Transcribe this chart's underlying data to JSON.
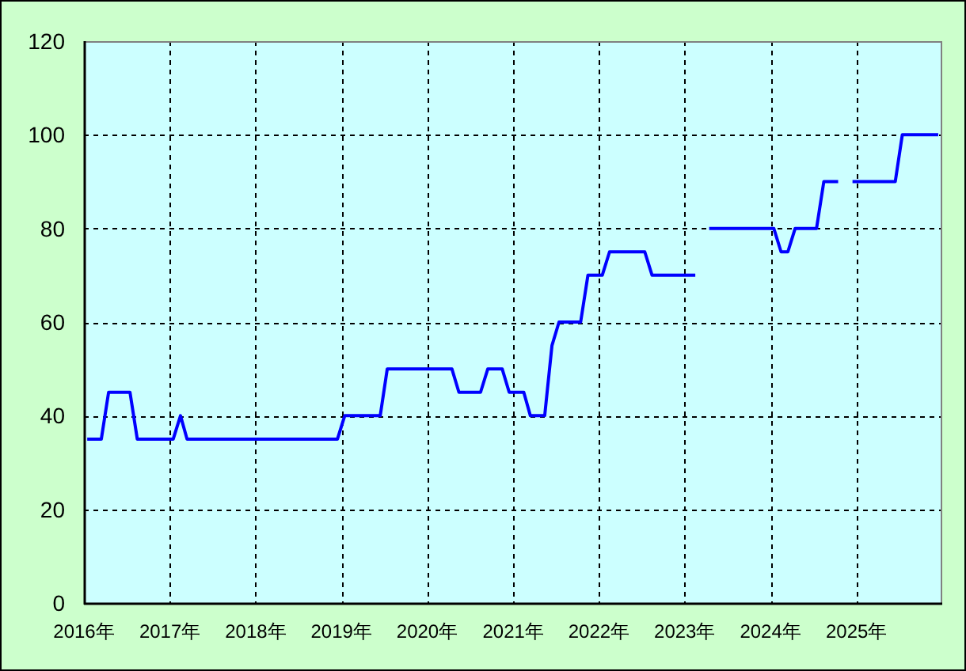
{
  "chart_data": {
    "type": "line",
    "line_style": "solid",
    "grid": true,
    "series": [
      {
        "color": "#0000ff",
        "x": [
          "2016-01-15",
          "2016-02-15",
          "2016-03-15",
          "2016-04-15",
          "2016-05-15",
          "2016-06-15",
          "2016-07-15",
          "2016-08-15",
          "2016-09-15",
          "2016-10-15",
          "2016-11-15",
          "2016-12-15",
          "2017-01-15",
          "2017-02-15",
          "2017-03-15",
          "2017-04-15",
          "2017-05-15",
          "2017-06-15",
          "2017-07-15",
          "2017-08-15",
          "2017-09-15",
          "2017-10-15",
          "2017-11-15",
          "2017-12-15",
          "2018-01-15",
          "2018-02-15",
          "2018-03-15",
          "2018-04-15",
          "2018-05-15",
          "2018-06-15",
          "2018-07-15",
          "2018-08-15",
          "2018-09-15",
          "2018-10-15",
          "2018-11-15",
          "2018-12-15",
          "2019-01-15",
          "2019-02-15",
          "2019-03-15",
          "2019-04-15",
          "2019-05-15",
          "2019-06-15",
          "2019-07-15",
          "2019-08-15",
          "2019-09-15",
          "2019-10-15",
          "2019-11-15",
          "2019-12-15",
          "2020-01-15",
          "2020-02-15",
          "2020-03-15",
          "2020-04-15",
          "2020-05-15",
          "2020-06-15",
          "2020-07-15",
          "2020-08-15",
          "2020-09-15",
          "2020-10-15",
          "2020-11-15",
          "2020-12-15",
          "2021-01-15",
          "2021-02-15",
          "2021-03-15",
          "2021-04-15",
          "2021-05-15",
          "2021-06-15",
          "2021-07-15",
          "2021-08-15",
          "2021-09-15",
          "2021-10-15",
          "2021-11-15",
          "2021-12-15",
          "2022-01-15",
          "2022-02-15",
          "2022-03-15",
          "2022-04-15",
          "2022-05-15",
          "2022-06-15",
          "2022-07-15",
          "2022-08-15",
          "2022-09-15",
          "2022-10-15",
          "2022-11-15",
          "2022-12-15",
          "2023-01-15",
          "2023-02-15"
        ],
        "values": [
          35,
          35,
          35,
          45,
          45,
          45,
          45,
          35,
          35,
          35,
          35,
          35,
          35,
          40,
          35,
          35,
          35,
          35,
          35,
          35,
          35,
          35,
          35,
          35,
          35,
          35,
          35,
          35,
          35,
          35,
          35,
          35,
          35,
          35,
          35,
          35,
          40,
          40,
          40,
          40,
          40,
          40,
          50,
          50,
          50,
          50,
          50,
          50,
          50,
          50,
          50,
          50,
          45,
          45,
          45,
          45,
          50,
          50,
          50,
          45,
          45,
          45,
          40,
          40,
          40,
          55,
          60,
          60,
          60,
          60,
          70,
          70,
          70,
          75,
          75,
          75,
          75,
          75,
          75,
          70,
          70,
          70,
          70,
          70,
          70,
          70
        ]
      },
      {
        "color": "#0000ff",
        "x": [
          "2023-04-15",
          "2023-05-15",
          "2023-06-15",
          "2023-07-15",
          "2023-08-15",
          "2023-09-15",
          "2023-10-15",
          "2023-11-15",
          "2023-12-15",
          "2024-01-15",
          "2024-02-15",
          "2024-03-15",
          "2024-04-15",
          "2024-05-15",
          "2024-06-15",
          "2024-07-15",
          "2024-08-15",
          "2024-09-15",
          "2024-10-15"
        ],
        "values": [
          80,
          80,
          80,
          80,
          80,
          80,
          80,
          80,
          80,
          80,
          75,
          75,
          80,
          80,
          80,
          80,
          90,
          90,
          90
        ]
      },
      {
        "color": "#0000ff",
        "x": [
          "2024-12-15",
          "2025-01-15",
          "2025-02-15",
          "2025-03-15",
          "2025-04-15",
          "2025-05-15",
          "2025-06-15",
          "2025-07-15",
          "2025-08-15",
          "2025-09-15",
          "2025-10-15",
          "2025-11-15",
          "2025-12-15"
        ],
        "values": [
          90,
          90,
          90,
          90,
          90,
          90,
          90,
          100,
          100,
          100,
          100,
          100,
          100
        ]
      }
    ],
    "xlim": [
      "2016",
      "2026"
    ],
    "xticks": [
      {
        "value": "2016",
        "label": "2016年"
      },
      {
        "value": "2017",
        "label": "2017年"
      },
      {
        "value": "2018",
        "label": "2018年"
      },
      {
        "value": "2019",
        "label": "2019年"
      },
      {
        "value": "2020",
        "label": "2020年"
      },
      {
        "value": "2021",
        "label": "2021年"
      },
      {
        "value": "2022",
        "label": "2022年"
      },
      {
        "value": "2023",
        "label": "2023年"
      },
      {
        "value": "2024",
        "label": "2024年"
      },
      {
        "value": "2025",
        "label": "2025年"
      }
    ],
    "ylim": [
      0,
      120
    ],
    "yticks": [
      0,
      20,
      40,
      60,
      80,
      100,
      120
    ]
  }
}
